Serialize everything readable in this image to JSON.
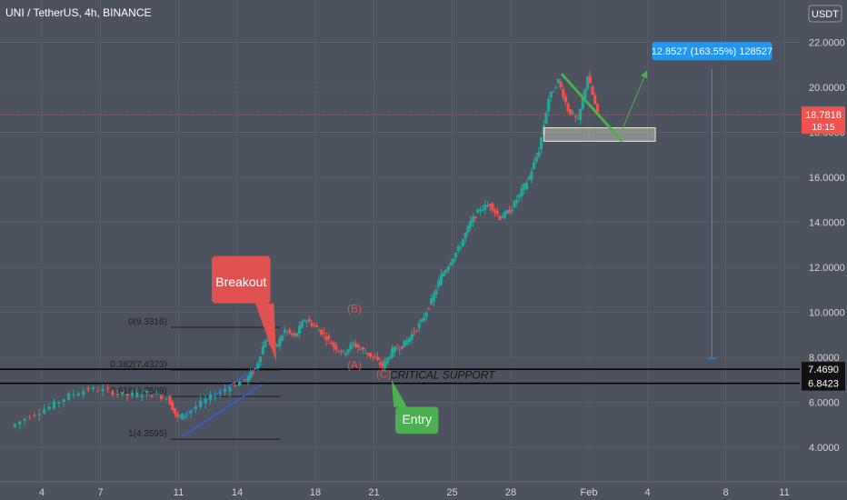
{
  "header": {
    "title": "UNI / TetherUS, 4h, BINANCE"
  },
  "currency_button": {
    "label": "USDT"
  },
  "colors": {
    "background": "#4c525e",
    "up": "#26a69a",
    "down": "#ef5350",
    "grid": "#565c68",
    "axis_text": "#d1d4dc"
  },
  "chart_data": {
    "type": "candlestick",
    "title": "UNI / TetherUS, 4h, BINANCE",
    "ylim": [
      3.0,
      23.0
    ],
    "y_ticks": [
      "4.0000",
      "6.0000",
      "8.0000",
      "10.0000",
      "12.0000",
      "14.0000",
      "16.0000",
      "18.0000",
      "20.0000",
      "22.0000"
    ],
    "y_tick_values": [
      4,
      6,
      8,
      10,
      12,
      14,
      16,
      18,
      20,
      22
    ],
    "x_ticks": [
      "4",
      "7",
      "11",
      "14",
      "18",
      "21",
      "25",
      "28",
      "Feb",
      "4",
      "8",
      "11"
    ],
    "x_tick_days": [
      4,
      7,
      11,
      14,
      18,
      21,
      25,
      28,
      32,
      35,
      39,
      42
    ],
    "x_range_days": [
      2.2,
      44.0
    ],
    "price_series": {
      "name": "UNI / TetherUS",
      "x": [
        2.5,
        3.5,
        4.5,
        5.5,
        6.5,
        7.5,
        8.5,
        9.5,
        10.5,
        11.0,
        11.5,
        12.5,
        13.5,
        14.5,
        15.0,
        15.5,
        16.0,
        16.5,
        17.0,
        17.5,
        18.0,
        18.5,
        19.0,
        19.5,
        20.0,
        20.5,
        21.0,
        21.5,
        22.0,
        22.5,
        23.0,
        23.5,
        24.0,
        24.5,
        25.0,
        25.5,
        26.0,
        26.5,
        27.0,
        27.5,
        28.0,
        28.5,
        29.0,
        29.5,
        30.0,
        30.5,
        31.0,
        31.5,
        32.0,
        32.5
      ],
      "close": [
        4.9,
        5.4,
        5.8,
        6.3,
        6.6,
        6.5,
        6.3,
        6.4,
        6.2,
        5.3,
        5.5,
        6.1,
        6.6,
        7.0,
        7.5,
        8.8,
        8.4,
        9.2,
        8.9,
        9.7,
        9.4,
        9.0,
        8.5,
        8.2,
        8.6,
        8.3,
        8.0,
        7.6,
        8.3,
        8.5,
        9.0,
        9.6,
        10.5,
        11.6,
        12.3,
        13.0,
        14.0,
        14.6,
        14.8,
        14.2,
        14.5,
        15.2,
        16.0,
        17.2,
        19.5,
        20.3,
        19.0,
        18.5,
        20.5,
        18.8
      ]
    },
    "current_price": 18.7818,
    "countdown": "18:15",
    "price_levels": [
      {
        "label": "7.4690",
        "value": 7.469
      },
      {
        "label": "6.8423",
        "value": 6.8423
      }
    ],
    "fibonacci": [
      {
        "label": "0(9.3316)",
        "value": 9.3316
      },
      {
        "label": "0.382(7.4323)",
        "value": 7.4323
      },
      {
        "label": "0.618(6.2589)",
        "value": 6.2589
      },
      {
        "label": "1(4.3595)",
        "value": 4.3595
      }
    ],
    "wave_labels": [
      {
        "text": "(A)",
        "x": 20.0,
        "y": 7.5
      },
      {
        "text": "(B)",
        "x": 20.0,
        "y": 10.0
      },
      {
        "text": "(C)",
        "x": 21.5,
        "y": 7.1
      }
    ],
    "support_label": "CRITICAL SUPPORT",
    "measure": {
      "label": "12.8527 (163.55%) 128527",
      "from": 7.95,
      "to": 20.8,
      "x": 38.3
    },
    "annotations": [
      {
        "text": "Breakout",
        "color": "#e05250",
        "x": 20.5,
        "y": 8.2
      },
      {
        "text": "Entry",
        "color": "#4caf50",
        "x": 21.8,
        "y": 7.2
      }
    ]
  }
}
